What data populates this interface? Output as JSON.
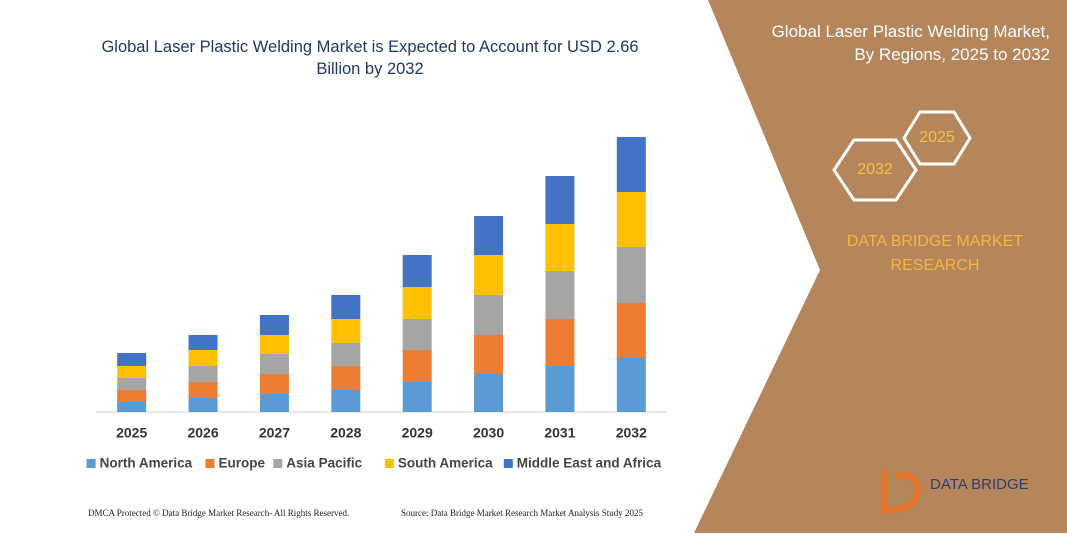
{
  "chart_data": {
    "type": "stacked-bar",
    "title": "Global Laser Plastic Welding Market is Expected to Account for USD 2.66 Billion by 2032",
    "categories": [
      "2025",
      "2026",
      "2027",
      "2028",
      "2029",
      "2030",
      "2031",
      "2032"
    ],
    "series": [
      {
        "name": "North America",
        "color": "#5b9bd5",
        "values": [
          10,
          14,
          18,
          22,
          30,
          38,
          46,
          54
        ]
      },
      {
        "name": "Europe",
        "color": "#ed7d31",
        "values": [
          12,
          16,
          20,
          24,
          32,
          39,
          47,
          55
        ]
      },
      {
        "name": "Asia Pacific",
        "color": "#a5a5a5",
        "values": [
          12,
          16,
          20,
          23,
          31,
          40,
          48,
          56
        ]
      },
      {
        "name": "South America",
        "color": "#ffc000",
        "values": [
          12,
          16,
          19,
          24,
          32,
          40,
          47,
          55
        ]
      },
      {
        "name": "Middle East and Africa",
        "color": "#4472c4",
        "values": [
          13,
          15,
          20,
          24,
          32,
          39,
          48,
          55
        ]
      }
    ],
    "ylim": [
      0,
      300
    ],
    "legend": "bottom"
  },
  "panel": {
    "title": "Global Laser Plastic Welding Market, By Regions, 2025 to 2032",
    "hexagons": [
      "2032",
      "2025"
    ],
    "brand": "DATA BRIDGE MARKET RESEARCH",
    "logo": "DATA BRIDGE"
  },
  "footer": {
    "left": "DMCA Protected © Data Bridge Market Research- All Rights Reserved.",
    "right": "Source: Data Bridge Market Research Market Analysis Study 2025"
  }
}
